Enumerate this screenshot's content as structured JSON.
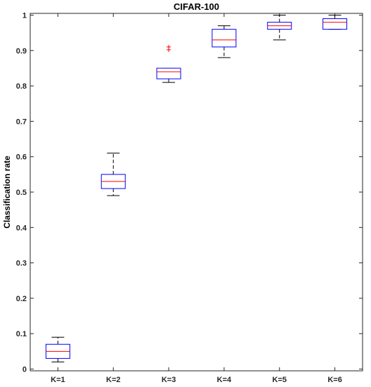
{
  "chart_data": {
    "type": "boxplot",
    "title": "CIFAR-100",
    "xlabel": "",
    "ylabel": "Classification rate",
    "ylim": [
      -0.005,
      1.005
    ],
    "yticks": [
      0,
      0.1,
      0.2,
      0.3,
      0.4,
      0.5,
      0.6,
      0.7,
      0.8,
      0.9,
      1
    ],
    "ytick_labels": [
      "0",
      "0.1",
      "0.2",
      "0.3",
      "0.4",
      "0.5",
      "0.6",
      "0.7",
      "0.8",
      "0.9",
      "1"
    ],
    "grid": false,
    "categories": [
      "K=1",
      "K=2",
      "K=3",
      "K=4",
      "K=5",
      "K=6"
    ],
    "boxes": [
      {
        "label": "K=1",
        "whisker_low": 0.02,
        "q1": 0.03,
        "median": 0.05,
        "q3": 0.07,
        "whisker_high": 0.09,
        "outliers": []
      },
      {
        "label": "K=2",
        "whisker_low": 0.49,
        "q1": 0.51,
        "median": 0.53,
        "q3": 0.55,
        "whisker_high": 0.61,
        "outliers": []
      },
      {
        "label": "K=3",
        "whisker_low": 0.81,
        "q1": 0.82,
        "median": 0.84,
        "q3": 0.85,
        "whisker_high": 0.85,
        "outliers": [
          0.902,
          0.91
        ]
      },
      {
        "label": "K=4",
        "whisker_low": 0.88,
        "q1": 0.91,
        "median": 0.93,
        "q3": 0.96,
        "whisker_high": 0.97,
        "outliers": []
      },
      {
        "label": "K=5",
        "whisker_low": 0.93,
        "q1": 0.96,
        "median": 0.97,
        "q3": 0.98,
        "whisker_high": 1.0,
        "outliers": []
      },
      {
        "label": "K=6",
        "whisker_low": 0.96,
        "q1": 0.96,
        "median": 0.98,
        "q3": 0.99,
        "whisker_high": 1.0,
        "outliers": []
      }
    ],
    "colors": {
      "box": "#0000ff",
      "median": "#ff0000",
      "whisker": "#000000",
      "outlier": "#ff0000",
      "axes": "#262626"
    }
  }
}
